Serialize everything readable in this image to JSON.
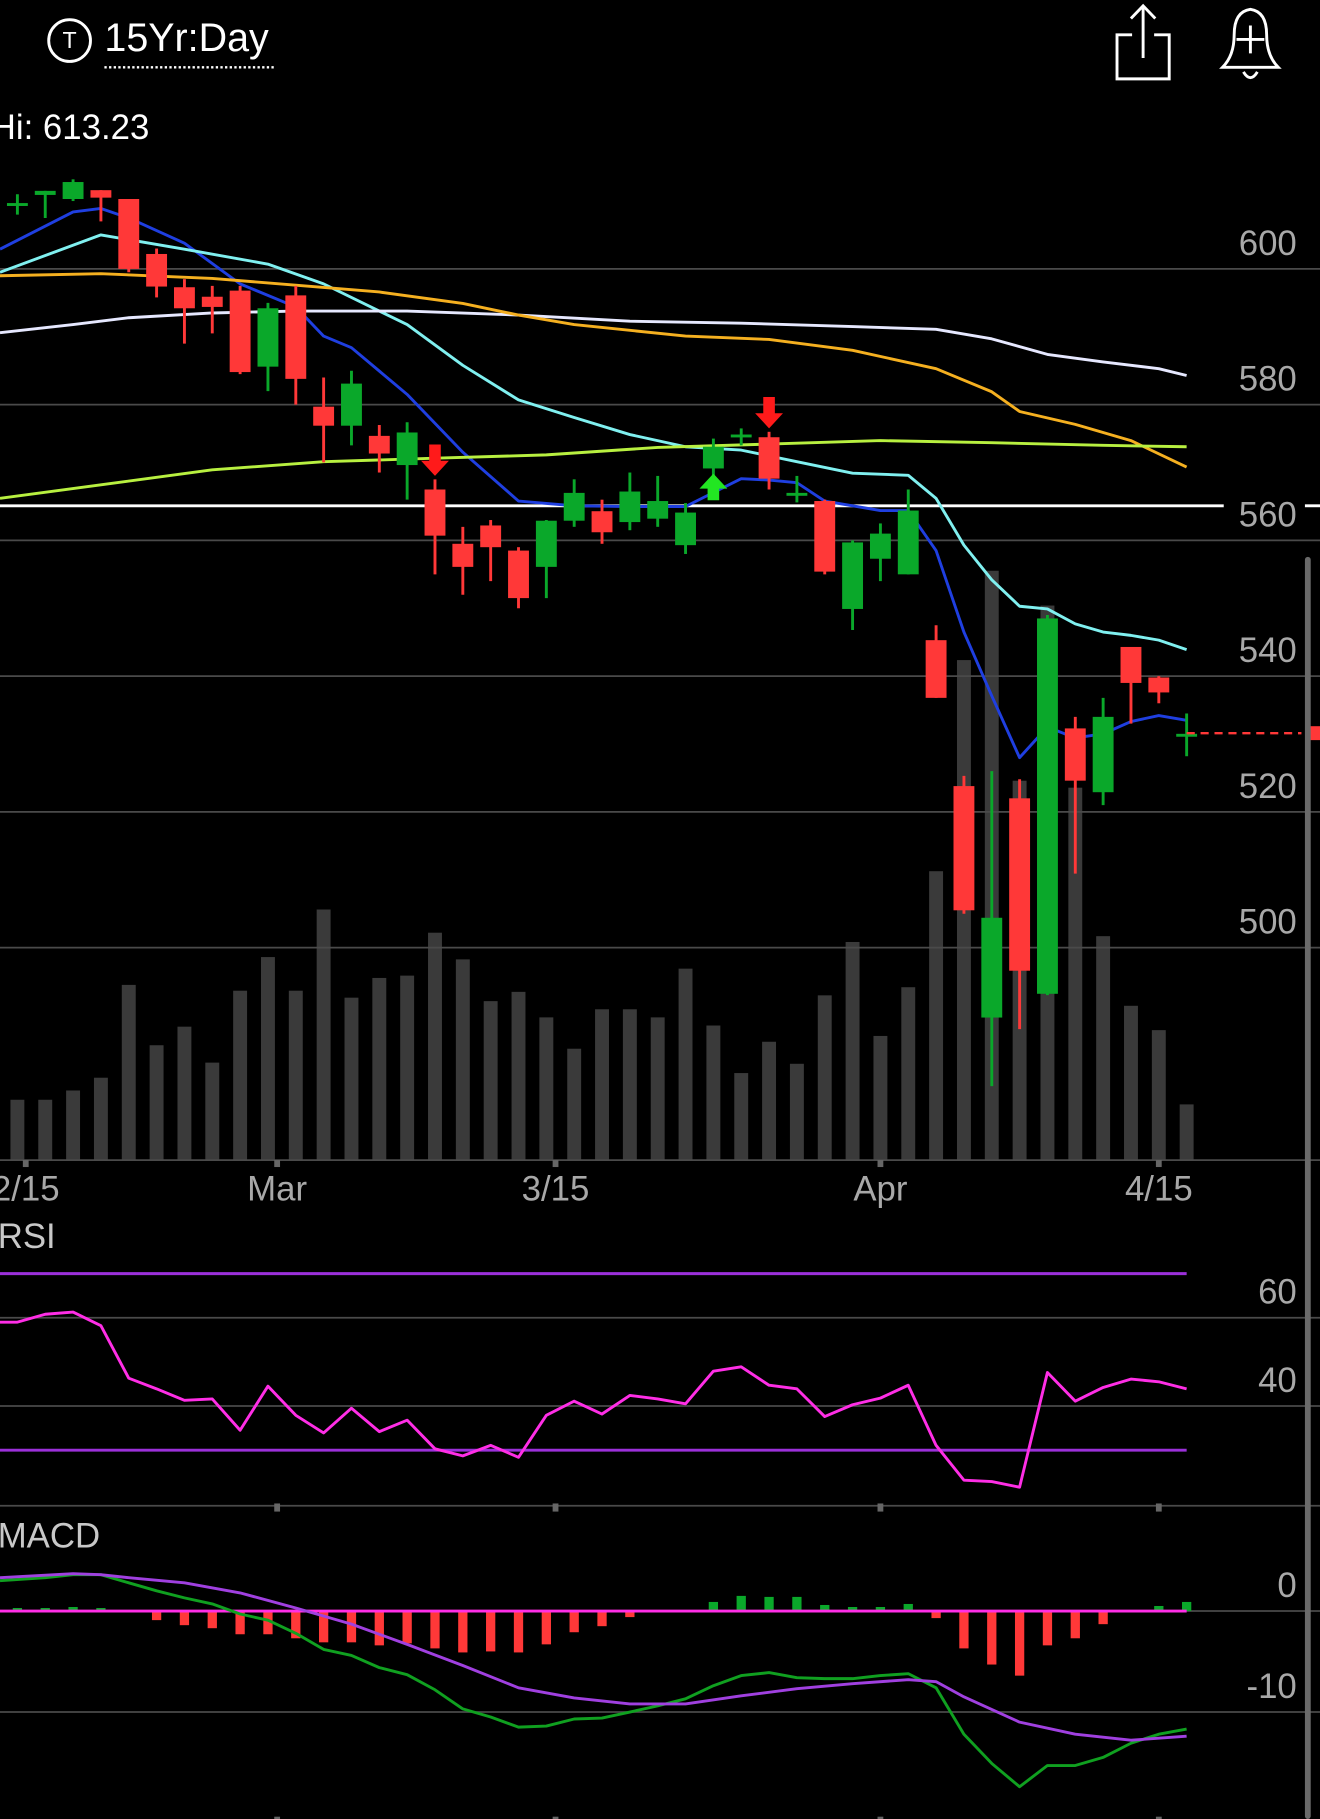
{
  "header": {
    "symbol_icon": "T",
    "timeframe": "15Yr:Day"
  },
  "chart_data": [
    {
      "type": "candlestick",
      "info": "Hi: 613.23",
      "x": [
        0,
        1,
        2,
        3,
        4,
        5,
        6,
        7,
        8,
        9,
        10,
        11,
        12,
        13,
        14,
        15,
        16,
        17,
        18,
        19,
        20,
        21,
        22,
        23,
        24,
        25,
        26,
        27,
        28,
        29,
        30,
        31,
        32,
        33,
        34,
        35,
        36,
        37,
        38,
        39,
        40,
        41,
        42
      ],
      "open": [
        609.7,
        610.9,
        610.3,
        611.6,
        610.3,
        602.2,
        597.3,
        595.9,
        596.8,
        585.6,
        596.1,
        579.7,
        576.9,
        575.4,
        571.1,
        567.5,
        559.5,
        562.2,
        558.5,
        556.1,
        562.9,
        564.3,
        562.7,
        563.2,
        559.3,
        570.6,
        575.2,
        575.2,
        567,
        565.8,
        549.9,
        557.3,
        555,
        545.3,
        523.8,
        489.7,
        522,
        493.2,
        532.3,
        522.9,
        544.3,
        539.8,
        531.5
      ],
      "high": [
        611,
        611.5,
        613.2,
        611.6,
        610.3,
        603,
        598.5,
        597.5,
        597.5,
        595,
        597.5,
        584,
        585,
        577,
        577.4,
        569,
        562,
        563,
        559,
        563,
        569,
        566,
        570,
        569.5,
        565.5,
        575,
        576.5,
        576,
        569.5,
        566,
        560,
        562.5,
        567.5,
        547.5,
        525.3,
        526,
        524.8,
        549,
        534,
        536.8,
        544.3,
        540,
        534.5
      ],
      "low": [
        608,
        607.5,
        610,
        607,
        599.5,
        595.8,
        589,
        590.5,
        584.5,
        582,
        580,
        571.5,
        574,
        570,
        566,
        555,
        552,
        554,
        550,
        551.5,
        562,
        559.5,
        561.5,
        562,
        558,
        569.5,
        574,
        567.5,
        565.6,
        555,
        546.8,
        554,
        555,
        536.8,
        505,
        479.6,
        488,
        493,
        510.9,
        521,
        533,
        536,
        528.2
      ],
      "close": [
        609.7,
        611.5,
        612.8,
        610.5,
        600,
        597.4,
        594.2,
        594.4,
        584.8,
        594.2,
        583.8,
        576.9,
        583.1,
        572.8,
        575.9,
        560.7,
        556.1,
        559,
        551.5,
        562.9,
        567,
        561.2,
        567.2,
        565.8,
        564.1,
        573.8,
        575.6,
        569.1,
        567,
        555.4,
        559.7,
        561,
        564.4,
        536.8,
        505.5,
        504.4,
        496.6,
        548.5,
        524.6,
        534,
        539,
        537.6,
        531.5
      ],
      "up_color": "#0aa82a",
      "down_color": "#ff3838",
      "volume": {
        "values": [
          52,
          52,
          60,
          71,
          151,
          99,
          115,
          84,
          146,
          175,
          146,
          216,
          140,
          157,
          159,
          196,
          173,
          137,
          145,
          123,
          96,
          130,
          130,
          123,
          165,
          116,
          75,
          102,
          83,
          142,
          188,
          107,
          149,
          249,
          431,
          508,
          327,
          478,
          321,
          193,
          133,
          112,
          48
        ],
        "color": "#3a3a3a",
        "axis": "y2"
      },
      "y2lim": [
        0,
        870
      ],
      "xlim": [
        -0.625,
        46.79
      ],
      "ylim": [
        468.7,
        617.4
      ],
      "yticks": [
        500,
        520,
        540,
        560,
        580,
        600
      ],
      "xticks": [
        {
          "value": 0.3,
          "label": "2/15"
        },
        {
          "value": 9.33,
          "label": "Mar"
        },
        {
          "value": 19.33,
          "label": "3/15"
        },
        {
          "value": 31,
          "label": "Apr"
        },
        {
          "value": 41,
          "label": "4/15"
        }
      ],
      "grid": true,
      "lines": [
        {
          "color": "#1f3fe0",
          "x": [
            -0.625,
            2,
            3,
            4,
            6,
            8,
            10,
            11,
            12,
            14,
            16,
            18,
            20,
            22,
            24,
            26,
            27,
            28,
            29,
            31,
            32,
            33,
            34,
            35,
            36,
            37,
            38,
            39,
            40,
            41,
            42
          ],
          "values": [
            602.9,
            608.4,
            608.9,
            607.5,
            603.8,
            597.8,
            594.4,
            590.1,
            588.4,
            581.5,
            573,
            565.8,
            565.1,
            565,
            565,
            569.1,
            568.9,
            568.5,
            565.8,
            564.4,
            564.4,
            558.5,
            546.5,
            537.1,
            528,
            532.5,
            530.9,
            531.5,
            533.3,
            534.2,
            533.5
          ]
        },
        {
          "color": "#80f0f0",
          "x": [
            -0.625,
            3,
            6,
            9,
            11,
            14,
            16,
            18,
            20,
            22,
            24,
            26,
            28,
            30,
            32,
            33,
            34,
            35,
            36,
            37,
            38,
            39,
            40,
            41,
            42
          ],
          "values": [
            599.5,
            605,
            602.9,
            600.7,
            597.8,
            591.8,
            585.8,
            580.7,
            578.1,
            575.6,
            573.8,
            573.3,
            571.6,
            569.9,
            569.6,
            566.2,
            559.3,
            554.2,
            550.3,
            549.9,
            547.7,
            546.5,
            546,
            545.3,
            543.9
          ]
        },
        {
          "color": "#e6e8ff",
          "x": [
            -0.625,
            2,
            4,
            7,
            10,
            14,
            18,
            22,
            26,
            30,
            33,
            35,
            37,
            39,
            41,
            42
          ],
          "values": [
            590.6,
            591.8,
            592.8,
            593.5,
            593.8,
            593.8,
            593.2,
            592.3,
            592,
            591.5,
            591.1,
            589.7,
            587.4,
            586.3,
            585.3,
            584.3
          ]
        },
        {
          "color": "#f5b020",
          "x": [
            -0.625,
            3,
            7,
            10,
            13,
            16,
            18,
            20,
            24,
            27,
            30,
            33,
            35,
            36,
            38,
            40,
            42
          ],
          "values": [
            599,
            599.3,
            598.6,
            597.6,
            596.6,
            594.9,
            593.2,
            591.8,
            590.1,
            589.6,
            588,
            585.3,
            581.9,
            579,
            577.1,
            574.7,
            570.8
          ]
        },
        {
          "color": "#b8f040",
          "x": [
            -0.625,
            3,
            7,
            11,
            15,
            19,
            23,
            27,
            31,
            35,
            39,
            42
          ],
          "values": [
            566.2,
            568.2,
            570.4,
            571.6,
            572.1,
            572.6,
            573.7,
            574.2,
            574.7,
            574.4,
            574,
            573.8
          ]
        }
      ],
      "hlines": [
        {
          "value": 565.1,
          "color": "#ffffff"
        }
      ],
      "last_price": {
        "value": 531.6,
        "color": "#ff3838"
      },
      "signals": [
        {
          "x": 15,
          "direction": "down",
          "color": "#ff1a1a"
        },
        {
          "x": 25,
          "direction": "up",
          "color": "#22e622"
        },
        {
          "x": 27,
          "direction": "down",
          "color": "#ff1a1a"
        }
      ]
    },
    {
      "type": "line",
      "title": "RSI",
      "xlim": [
        -0.625,
        46.79
      ],
      "ylim": [
        17.4,
        74.7
      ],
      "yticks": [
        40,
        60
      ],
      "grid": true,
      "xtick_marks": [
        9.33,
        19.33,
        31,
        41
      ],
      "bands": [
        {
          "value": 70,
          "color": "#9b30d9"
        },
        {
          "value": 30,
          "color": "#9b30d9"
        }
      ],
      "lines": [
        {
          "color": "#ff2ee6",
          "x": [
            -0.625,
            0,
            1,
            2,
            3,
            4,
            5,
            6,
            7,
            8,
            9,
            10,
            11,
            12,
            13,
            14,
            15,
            16,
            17,
            18,
            19,
            20,
            21,
            22,
            23,
            24,
            25,
            26,
            27,
            28,
            29,
            30,
            31,
            32,
            33,
            34,
            35,
            36,
            37,
            38,
            39,
            40,
            41,
            42
          ],
          "values": [
            59,
            59,
            60.8,
            61.3,
            58.2,
            46.3,
            43.9,
            41.3,
            41.6,
            34.5,
            44.5,
            37.9,
            33.9,
            39.5,
            34.2,
            36.8,
            30.3,
            28.7,
            31.1,
            28.4,
            37.9,
            41.1,
            38.2,
            42.4,
            41.6,
            40.5,
            47.9,
            48.9,
            44.7,
            43.9,
            37.6,
            40.3,
            41.8,
            44.7,
            31.1,
            23.2,
            22.9,
            21.6,
            47.6,
            41.1,
            44.2,
            46.1,
            45.5,
            43.9
          ]
        }
      ]
    },
    {
      "type": "macd",
      "title": "MACD",
      "xlim": [
        -0.625,
        46.79
      ],
      "ylim": [
        -20.6,
        5.6
      ],
      "yticks": [
        0,
        -10
      ],
      "grid": true,
      "xtick_marks": [
        9.33,
        19.33,
        31,
        41
      ],
      "zero_line_color": "#ff2ee6",
      "histogram": {
        "x": [
          0,
          1,
          2,
          3,
          4,
          5,
          6,
          7,
          8,
          9,
          10,
          11,
          12,
          13,
          14,
          15,
          16,
          17,
          18,
          19,
          20,
          21,
          22,
          23,
          24,
          25,
          26,
          27,
          28,
          29,
          30,
          31,
          32,
          33,
          34,
          35,
          36,
          37,
          38,
          39,
          40,
          41,
          42
        ],
        "values": [
          0.3,
          0.3,
          0.4,
          0.3,
          -0.1,
          -0.9,
          -1.4,
          -1.7,
          -2.3,
          -2.3,
          -2.7,
          -3.1,
          -3.1,
          -3.4,
          -3.2,
          -3.7,
          -4.1,
          -4,
          -4.1,
          -3.3,
          -2.1,
          -1.5,
          -0.6,
          -0.1,
          0,
          0.9,
          1.5,
          1.4,
          1.4,
          0.6,
          0.4,
          0.4,
          0.7,
          -0.7,
          -3.7,
          -5.3,
          -6.4,
          -3.4,
          -2.7,
          -1.3,
          0,
          0.5,
          0.9
        ],
        "up_color": "#0aa82a",
        "down_color": "#ff3838"
      },
      "lines": [
        {
          "color": "#10a020",
          "x": [
            -0.625,
            1,
            2,
            3,
            4,
            5,
            6,
            7,
            8,
            9,
            10,
            11,
            12,
            13,
            14,
            15,
            16,
            17,
            18,
            19,
            20,
            21,
            22,
            23,
            24,
            25,
            26,
            27,
            28,
            29,
            30,
            31,
            32,
            33,
            34,
            35,
            36,
            37,
            38,
            39,
            40,
            41,
            42
          ],
          "values": [
            3,
            3.3,
            3.6,
            3.6,
            2.8,
            2,
            1.3,
            0.7,
            -0.3,
            -0.9,
            -2.2,
            -3.8,
            -4.4,
            -5.6,
            -6.3,
            -7.8,
            -9.7,
            -10.5,
            -11.5,
            -11.4,
            -10.7,
            -10.6,
            -10,
            -9.4,
            -8.7,
            -7.4,
            -6.4,
            -6.1,
            -6.6,
            -6.7,
            -6.7,
            -6.4,
            -6.2,
            -7.6,
            -12.2,
            -15.1,
            -17.4,
            -15.3,
            -15.3,
            -14.5,
            -13.1,
            -12.2,
            -11.7
          ]
        },
        {
          "color": "#a040e0",
          "x": [
            -0.625,
            2,
            3,
            4,
            6,
            8,
            10,
            12,
            14,
            16,
            18,
            20,
            22,
            24,
            26,
            28,
            30,
            32,
            33,
            34,
            36,
            38,
            40,
            42
          ],
          "values": [
            3.3,
            3.7,
            3.6,
            3.3,
            2.8,
            1.8,
            0.3,
            -1.3,
            -3.3,
            -5.4,
            -7.6,
            -8.6,
            -9.2,
            -9.2,
            -8.4,
            -7.7,
            -7.2,
            -6.8,
            -7,
            -8.5,
            -11,
            -12.2,
            -12.8,
            -12.4
          ]
        }
      ]
    }
  ]
}
